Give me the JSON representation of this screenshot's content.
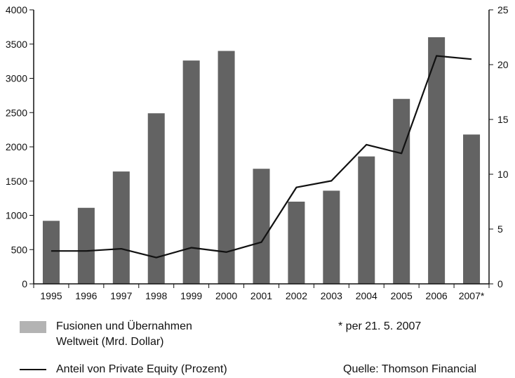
{
  "chart_data": {
    "type": "bar",
    "categories": [
      "1995",
      "1996",
      "1997",
      "1998",
      "1999",
      "2000",
      "2001",
      "2002",
      "2003",
      "2004",
      "2005",
      "2006",
      "2007*"
    ],
    "series": [
      {
        "name": "Fusionen und Übernahmen Weltweit (Mrd. Dollar)",
        "kind": "bar",
        "axis": "left",
        "values": [
          920,
          1110,
          1640,
          2490,
          3260,
          3400,
          1680,
          1200,
          1360,
          1860,
          2700,
          3600,
          2180
        ]
      },
      {
        "name": "Anteil von Private Equity (Prozent)",
        "kind": "line",
        "axis": "right",
        "values": [
          3.0,
          3.0,
          3.2,
          2.4,
          3.3,
          2.9,
          3.8,
          8.8,
          9.4,
          12.7,
          11.9,
          20.8,
          20.5
        ]
      }
    ],
    "ylim_left": [
      0,
      4000
    ],
    "yticks_left": [
      0,
      500,
      1000,
      1500,
      2000,
      2500,
      3000,
      3500,
      4000
    ],
    "ylim_right": [
      0,
      25
    ],
    "yticks_right": [
      0,
      5,
      10,
      15,
      20,
      25
    ],
    "grid": false,
    "legend_position": "bottom",
    "colors": {
      "bar": "#636363",
      "bar_legend": "#b3b3b3",
      "line": "#111111"
    }
  },
  "legend": {
    "bar_label_line1": "Fusionen und Übernahmen",
    "bar_label_line2": "Weltweit (Mrd. Dollar)",
    "line_label": "Anteil von Private Equity (Prozent)"
  },
  "notes": {
    "footnote": "* per 21. 5. 2007",
    "source": "Quelle: Thomson Financial"
  }
}
